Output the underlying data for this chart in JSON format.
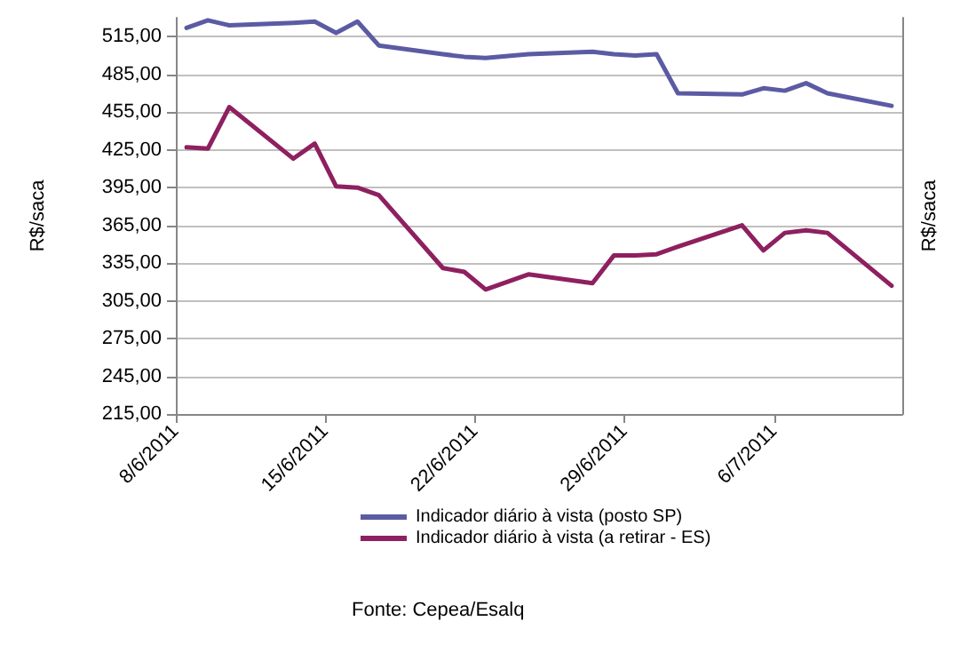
{
  "chart_data": {
    "type": "line",
    "ylabel": "R$/saca",
    "y2label": "R$/saca",
    "x": [
      "2011-06-08T12:00",
      "2011-06-09T12:00",
      "2011-06-10T12:00",
      "2011-06-13T12:00",
      "2011-06-14T12:00",
      "2011-06-15T12:00",
      "2011-06-16T12:00",
      "2011-06-17T12:00",
      "2011-06-20T12:00",
      "2011-06-21T12:00",
      "2011-06-22T12:00",
      "2011-06-24T12:00",
      "2011-06-27T12:00",
      "2011-06-28T12:00",
      "2011-06-29T12:00",
      "2011-06-30T12:00",
      "2011-07-01T12:00",
      "2011-07-04T12:00",
      "2011-07-05T12:00",
      "2011-07-06T12:00",
      "2011-07-07T12:00",
      "2011-07-08T12:00",
      "2011-07-11T12:00"
    ],
    "series": [
      {
        "name": "Indicador diário à vista (posto SP)",
        "color": "#5b5ba4",
        "values": [
          522,
          528,
          524,
          526,
          527,
          518,
          527,
          508,
          501,
          499,
          498,
          501,
          503,
          501,
          500,
          501,
          470,
          469,
          474,
          472,
          478,
          470,
          460
        ]
      },
      {
        "name": "Indicador diário à vista (a retirar - ES)",
        "color": "#8e2060",
        "values": [
          427,
          426,
          459,
          418,
          430,
          396,
          395,
          389,
          331,
          328,
          314,
          326,
          319,
          341,
          341,
          342,
          348,
          365,
          345,
          359,
          361,
          359,
          317
        ]
      }
    ],
    "xlim": [
      "2011-06-08",
      "2011-07-12"
    ],
    "xticks": [
      {
        "value": "2011-06-08",
        "label": "8/6/2011"
      },
      {
        "value": "2011-06-15",
        "label": "15/6/2011"
      },
      {
        "value": "2011-06-22",
        "label": "22/6/2011"
      },
      {
        "value": "2011-06-29",
        "label": "29/6/2011"
      },
      {
        "value": "2011-07-06",
        "label": "6/7/2011"
      }
    ],
    "ylim": [
      215,
      530
    ],
    "yticks": [
      {
        "value": 215,
        "label": "215,00"
      },
      {
        "value": 245,
        "label": "245,00"
      },
      {
        "value": 275,
        "label": "275,00"
      },
      {
        "value": 305,
        "label": "305,00"
      },
      {
        "value": 335,
        "label": "335,00"
      },
      {
        "value": 365,
        "label": "365,00"
      },
      {
        "value": 395,
        "label": "395,00"
      },
      {
        "value": 425,
        "label": "425,00"
      },
      {
        "value": 455,
        "label": "455,00"
      },
      {
        "value": 485,
        "label": "485,00"
      },
      {
        "value": 515,
        "label": "515,00"
      }
    ],
    "grid": "y",
    "legend": "bottom",
    "marker": "none",
    "line_style": "solid",
    "annotations": [
      "Fonte: Cepea/Esalq"
    ]
  }
}
